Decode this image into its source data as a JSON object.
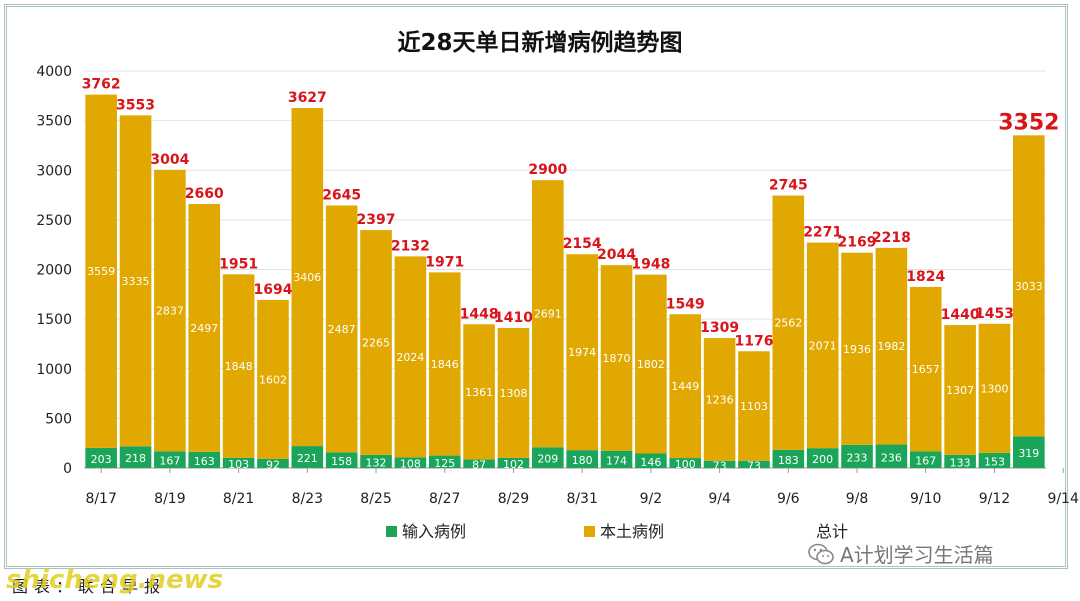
{
  "chart_data": {
    "type": "bar",
    "stacked": true,
    "title": "近28天单日新增病例趋势图",
    "categories": [
      "8/17",
      "8/18",
      "8/19",
      "8/20",
      "8/21",
      "8/22",
      "8/23",
      "8/24",
      "8/25",
      "8/26",
      "8/27",
      "8/28",
      "8/29",
      "8/30",
      "8/31",
      "9/1",
      "9/2",
      "9/3",
      "9/4",
      "9/5",
      "9/6",
      "9/7",
      "9/8",
      "9/9",
      "9/10",
      "9/11",
      "9/12",
      "9/13"
    ],
    "x_tick_labels": [
      "8/17",
      "8/19",
      "8/21",
      "8/23",
      "8/25",
      "8/27",
      "8/29",
      "8/31",
      "9/2",
      "9/4",
      "9/6",
      "9/8",
      "9/10",
      "9/12",
      "9/14"
    ],
    "series": [
      {
        "name": "输入病例",
        "color": "#1aa55a",
        "values": [
          203,
          218,
          167,
          163,
          103,
          92,
          221,
          158,
          132,
          108,
          125,
          87,
          102,
          209,
          180,
          174,
          146,
          100,
          73,
          73,
          183,
          200,
          233,
          236,
          167,
          133,
          153,
          319
        ]
      },
      {
        "name": "本土病例",
        "color": "#e0a800",
        "values": [
          3559,
          3335,
          2837,
          2497,
          1848,
          1602,
          3406,
          2487,
          2265,
          2024,
          1846,
          1361,
          1308,
          2691,
          1974,
          1870,
          1802,
          1449,
          1236,
          1103,
          2562,
          2071,
          1936,
          1982,
          1657,
          1307,
          1300,
          3033
        ]
      }
    ],
    "totals": {
      "name": "总计",
      "values": [
        3762,
        3553,
        3004,
        2660,
        1951,
        1694,
        3627,
        2645,
        2397,
        2132,
        1971,
        1448,
        1410,
        2900,
        2154,
        2044,
        1948,
        1549,
        1309,
        1176,
        2745,
        2271,
        2169,
        2218,
        1824,
        1440,
        1453,
        3352
      ]
    },
    "ylim": [
      0,
      4000
    ],
    "yticks": [
      0,
      500,
      1000,
      1500,
      2000,
      2500,
      3000,
      3500,
      4000
    ],
    "grid": true,
    "legend_position": "bottom",
    "total_label_color": "#d9141b"
  },
  "footer": {
    "source_label": "图表：联合早报",
    "watermark_site": "shicheng.news",
    "watermark_account": "A计划学习生活篇"
  }
}
